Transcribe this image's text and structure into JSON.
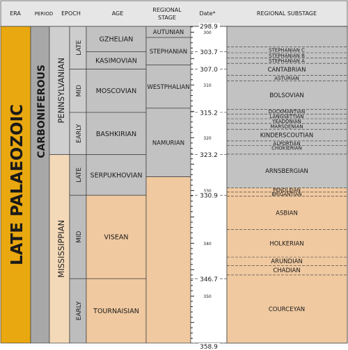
{
  "headers": {
    "era": "ERA",
    "period": "PERIOD",
    "epoch": "EPOCH",
    "age": "AGE",
    "regional_stage": [
      "REGIONAL",
      "STAGE"
    ],
    "date": "Date*",
    "regional_substage": "REGIONAL SUBSTAGE"
  },
  "colors": {
    "era": "#e9a80f",
    "period": "#a8a8a8",
    "pennsylvanian": "#cfcfcf",
    "mississippian": "#f4d9b8",
    "penn_epoch": "#cdcdcd",
    "miss_epoch": "#bdbdbd",
    "penn_fill": "#c2c2c2",
    "miss_fill": "#f0c9a0",
    "header": "#e6e6e6",
    "date_axis": "#ffffff"
  },
  "era": "LATE PALAEOZOIC",
  "period": "CARBONIFEROUS",
  "subperiods": [
    {
      "name": "PENNSYLVANIAN",
      "top": 298.9,
      "bottom": 323.2,
      "color": "pennsylvanian"
    },
    {
      "name": "MISSISSIPPIAN",
      "top": 323.2,
      "bottom": 358.9,
      "color": "mississippian"
    }
  ],
  "epochs": [
    {
      "name": "LATE",
      "top": 298.9,
      "bottom": 307.0,
      "color": "penn_epoch"
    },
    {
      "name": "MID",
      "top": 307.0,
      "bottom": 315.2,
      "color": "penn_epoch"
    },
    {
      "name": "EARLY",
      "top": 315.2,
      "bottom": 323.2,
      "color": "penn_epoch"
    },
    {
      "name": "LATE",
      "top": 323.2,
      "bottom": 330.9,
      "color": "miss_epoch"
    },
    {
      "name": "MID",
      "top": 330.9,
      "bottom": 346.7,
      "color": "miss_epoch"
    },
    {
      "name": "EARLY",
      "top": 346.7,
      "bottom": 358.9,
      "color": "miss_epoch"
    }
  ],
  "ages": [
    {
      "name": "GZHELIAN",
      "top": 298.9,
      "bottom": 303.7,
      "color": "penn_fill"
    },
    {
      "name": "KASIMOVIAN",
      "top": 303.7,
      "bottom": 307.0,
      "color": "penn_fill"
    },
    {
      "name": "MOSCOVIAN",
      "top": 307.0,
      "bottom": 315.2,
      "color": "penn_fill"
    },
    {
      "name": "BASHKIRIAN",
      "top": 315.2,
      "bottom": 323.2,
      "color": "penn_fill"
    },
    {
      "name": "SERPUKHOVIAN",
      "top": 323.2,
      "bottom": 330.9,
      "color": "penn_fill"
    },
    {
      "name": "VISEAN",
      "top": 330.9,
      "bottom": 346.7,
      "color": "miss_fill"
    },
    {
      "name": "TOURNAISIAN",
      "top": 346.7,
      "bottom": 358.9,
      "color": "miss_fill"
    }
  ],
  "regional_stages": [
    {
      "name": "AUTUNIAN",
      "top": 298.9,
      "bottom": 301.0,
      "color": "penn_fill"
    },
    {
      "name": "STEPHANIAN",
      "top": 301.0,
      "bottom": 306.2,
      "color": "penn_fill"
    },
    {
      "name": "WESTPHALIAN",
      "top": 306.2,
      "bottom": 314.4,
      "color": "penn_fill"
    },
    {
      "name": "NAMURIAN",
      "top": 314.4,
      "bottom": 327.4,
      "color": "penn_fill"
    },
    {
      "name": "",
      "top": 327.4,
      "bottom": 358.9,
      "color": "miss_fill"
    }
  ],
  "date_ticks": [
    {
      "value": 298.9,
      "label": "298.9",
      "major": true
    },
    {
      "value": 300,
      "label": "300",
      "major": false
    },
    {
      "value": 303.7,
      "label": "303.7",
      "major": true
    },
    {
      "value": 307.0,
      "label": "307.0",
      "major": true
    },
    {
      "value": 310,
      "label": "310",
      "major": false
    },
    {
      "value": 315.2,
      "label": "315.2",
      "major": true
    },
    {
      "value": 320,
      "label": "320",
      "major": false
    },
    {
      "value": 323.2,
      "label": "323.2",
      "major": true
    },
    {
      "value": 330,
      "label": "330",
      "major": false
    },
    {
      "value": 330.9,
      "label": "330.9",
      "major": true
    },
    {
      "value": 340,
      "label": "340",
      "major": false
    },
    {
      "value": 346.7,
      "label": "346.7",
      "major": true
    },
    {
      "value": 350,
      "label": "350",
      "major": false
    },
    {
      "value": 358.9,
      "label": "358.9",
      "major": true
    }
  ],
  "substages": [
    {
      "name": "",
      "top": 298.9,
      "bottom": 302.8,
      "color": "penn_fill"
    },
    {
      "name": "STEPHANIAN C",
      "top": 302.8,
      "bottom": 303.9,
      "color": "penn_fill"
    },
    {
      "name": "STEPHANIAN B",
      "top": 303.9,
      "bottom": 304.9,
      "color": "penn_fill"
    },
    {
      "name": "STEPHANIAN A",
      "top": 304.9,
      "bottom": 305.9,
      "color": "penn_fill"
    },
    {
      "name": "CANTABRIAN",
      "top": 305.9,
      "bottom": 308.2,
      "color": "penn_fill"
    },
    {
      "name": "ASTURIAN",
      "top": 308.2,
      "bottom": 309.2,
      "color": "penn_fill"
    },
    {
      "name": "BOLSOVIAN",
      "top": 309.2,
      "bottom": 314.6,
      "color": "penn_fill"
    },
    {
      "name": "DUCKMANTIAN",
      "top": 314.6,
      "bottom": 315.5,
      "color": "penn_fill"
    },
    {
      "name": "LANGSETTIAN",
      "top": 315.5,
      "bottom": 316.4,
      "color": "penn_fill"
    },
    {
      "name": "YEADONIAN",
      "top": 316.4,
      "bottom": 317.3,
      "color": "penn_fill"
    },
    {
      "name": "MARSDENIAN",
      "top": 317.3,
      "bottom": 318.4,
      "color": "penn_fill"
    },
    {
      "name": "KINDERSCOUTIAN",
      "top": 318.4,
      "bottom": 320.6,
      "color": "penn_fill"
    },
    {
      "name": "ALPORTIAN",
      "top": 320.6,
      "bottom": 321.5,
      "color": "penn_fill"
    },
    {
      "name": "CHOKIERIAN",
      "top": 321.5,
      "bottom": 322.4,
      "color": "penn_fill"
    },
    {
      "name": "ARNSBERGIAN",
      "top": 323.1,
      "bottom": 329.5,
      "color": "penn_fill"
    },
    {
      "name": "PENDLEIAN",
      "top": 329.5,
      "bottom": 330.3,
      "color": "miss_fill"
    },
    {
      "name": "BRIGANTIAN",
      "top": 330.3,
      "bottom": 331.1,
      "color": "miss_fill"
    },
    {
      "name": "ASBIAN",
      "top": 331.1,
      "bottom": 337.4,
      "color": "miss_fill"
    },
    {
      "name": "HOLKERIAN",
      "top": 337.4,
      "bottom": 342.6,
      "color": "miss_fill"
    },
    {
      "name": "ARUNDIAN",
      "top": 342.6,
      "bottom": 344.2,
      "color": "miss_fill"
    },
    {
      "name": "CHADIAN",
      "top": 344.2,
      "bottom": 346.0,
      "color": "miss_fill"
    },
    {
      "name": "COURCEYAN",
      "top": 346.0,
      "bottom": 358.9,
      "color": "miss_fill"
    }
  ]
}
